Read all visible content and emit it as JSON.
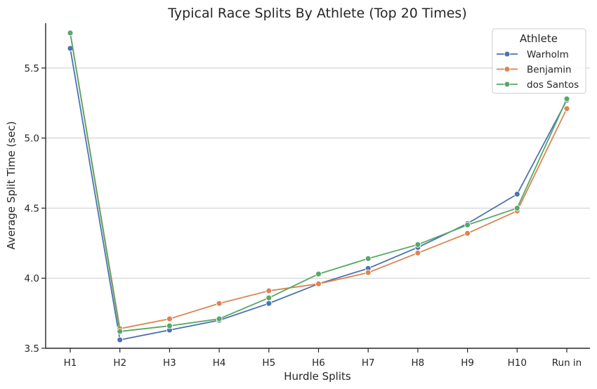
{
  "chart_data": {
    "type": "line",
    "title": "Typical Race Splits By Athlete (Top 20 Times)",
    "xlabel": "Hurdle Splits",
    "ylabel": "Average Split Time (sec)",
    "categories": [
      "H1",
      "H2",
      "H3",
      "H4",
      "H5",
      "H6",
      "H7",
      "H8",
      "H9",
      "H10",
      "Run in"
    ],
    "ylim": [
      3.5,
      5.82
    ],
    "yticks": [
      3.5,
      4.0,
      4.5,
      5.0,
      5.5
    ],
    "ytick_labels": [
      "3.5",
      "4.0",
      "4.5",
      "5.0",
      "5.5"
    ],
    "grid": "horizontal",
    "legend": {
      "title": "Athlete",
      "placement": "top-right"
    },
    "series": [
      {
        "name": "Warholm",
        "color": "#4c72b0",
        "values": [
          5.64,
          3.56,
          3.63,
          3.7,
          3.82,
          3.96,
          4.07,
          4.22,
          4.39,
          4.6,
          5.27
        ]
      },
      {
        "name": "Benjamin",
        "color": "#dd8452",
        "values": [
          5.75,
          3.64,
          3.71,
          3.82,
          3.91,
          3.96,
          4.04,
          4.18,
          4.32,
          4.48,
          5.21
        ]
      },
      {
        "name": "dos Santos",
        "color": "#55a868",
        "values": [
          5.75,
          3.62,
          3.66,
          3.71,
          3.86,
          4.03,
          4.14,
          4.24,
          4.38,
          4.5,
          5.28
        ]
      }
    ]
  }
}
